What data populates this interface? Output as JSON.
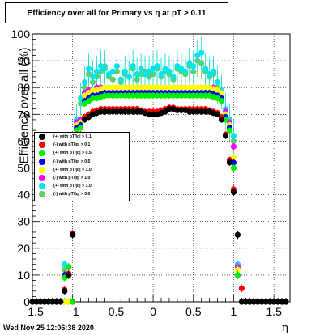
{
  "chart_data": {
    "type": "scatter",
    "title": "Efficiency over all for Primary vs   η at pT > 0.11",
    "xlabel": "η",
    "ylabel": "Efficiency over all (%)",
    "xlim": [
      -1.5,
      1.7
    ],
    "ylim": [
      0,
      100
    ],
    "xticks": [
      "−1.5",
      "−1",
      "−0.5",
      "0",
      "0.5",
      "1",
      "1.5"
    ],
    "yticks": [
      "0",
      "10",
      "20",
      "30",
      "40",
      "50",
      "60",
      "70",
      "80",
      "90",
      "100"
    ],
    "grid": true,
    "legend_position": "left-middle",
    "x": [
      -1.5,
      -1.45,
      -1.4,
      -1.35,
      -1.3,
      -1.25,
      -1.2,
      -1.15,
      -1.1,
      -1.05,
      -1.0,
      -0.95,
      -0.9,
      -0.85,
      -0.8,
      -0.75,
      -0.7,
      -0.65,
      -0.6,
      -0.55,
      -0.5,
      -0.45,
      -0.4,
      -0.35,
      -0.3,
      -0.25,
      -0.2,
      -0.15,
      -0.1,
      -0.05,
      0.0,
      0.05,
      0.1,
      0.15,
      0.2,
      0.25,
      0.3,
      0.35,
      0.4,
      0.45,
      0.5,
      0.55,
      0.6,
      0.65,
      0.7,
      0.75,
      0.8,
      0.85,
      0.9,
      0.95,
      1.0,
      1.05,
      1.1,
      1.15,
      1.2,
      1.25,
      1.3,
      1.35,
      1.4,
      1.45,
      1.5,
      1.55,
      1.6,
      1.65
    ],
    "series": [
      {
        "name": "(+) with pT/|q| > 0.1",
        "color": "#000000",
        "values": [
          0,
          0,
          0,
          0,
          0,
          0,
          0,
          0,
          4,
          10,
          25,
          52,
          62,
          68,
          69,
          70,
          70.5,
          71,
          71,
          71,
          71,
          71,
          71,
          71,
          71,
          71,
          71,
          71,
          70.5,
          70,
          70,
          70,
          70.5,
          71,
          72,
          72,
          71.5,
          71.5,
          71.5,
          71,
          71,
          71,
          71,
          71,
          71,
          70.5,
          70,
          68,
          62,
          52,
          41,
          25,
          0,
          0,
          0,
          0,
          0,
          0,
          0,
          0,
          0,
          0,
          0,
          0
        ]
      },
      {
        "name": "(-) with pT/|q| > 0.1",
        "color": "#ff0000",
        "values": [
          0,
          0,
          0,
          0,
          0,
          0,
          0,
          0,
          4.5,
          10.5,
          25.5,
          52.5,
          62.5,
          69,
          70,
          71,
          71.5,
          72,
          72,
          72,
          72,
          72,
          72,
          72,
          72,
          72,
          72,
          71.5,
          71,
          71,
          71,
          71,
          71.5,
          72,
          72.5,
          72.5,
          72,
          72,
          72,
          72,
          72,
          72,
          72,
          72,
          71.5,
          71,
          70.5,
          69,
          62.5,
          53,
          42,
          25,
          5,
          0,
          0,
          0,
          0,
          0,
          0,
          0,
          0,
          0,
          0,
          0
        ]
      },
      {
        "name": "(+) with pT/|q| > 0.5",
        "color": "#00ee00",
        "values": [
          0,
          0,
          0,
          0,
          0,
          0,
          0,
          0,
          9,
          13,
          0,
          64,
          65,
          74,
          75,
          76,
          76,
          76.5,
          77,
          77,
          77,
          77,
          77,
          77,
          77,
          77,
          77,
          77,
          77,
          77,
          77,
          77,
          77,
          77,
          77,
          77,
          77,
          77,
          77,
          77,
          77,
          77,
          77,
          77,
          77,
          76.5,
          76,
          75,
          68,
          64,
          50,
          10,
          0,
          0,
          0,
          0,
          0,
          0,
          0,
          0,
          0,
          0,
          0,
          0
        ]
      },
      {
        "name": "(-) with pT/|q| > 0.5",
        "color": "#0000ff",
        "values": [
          0,
          0,
          0,
          0,
          0,
          0,
          0,
          0,
          10,
          13,
          0,
          65,
          66,
          75,
          76,
          77,
          77,
          77.5,
          78,
          78,
          78,
          78,
          78,
          78,
          78,
          78,
          78,
          78,
          78,
          78,
          78,
          78,
          78,
          78,
          78,
          78,
          78,
          78,
          78,
          78,
          78,
          78,
          78,
          78,
          78,
          77.5,
          77,
          76,
          69,
          65,
          52,
          10,
          0,
          0,
          0,
          0,
          0,
          0,
          0,
          0,
          0,
          0,
          0,
          0
        ]
      },
      {
        "name": "(+) with pT/|q| > 1.0",
        "color": "#ffff00",
        "values": [
          0,
          0,
          0,
          0,
          0,
          0,
          0,
          0,
          0,
          0,
          0,
          66,
          67,
          77,
          78,
          79,
          79,
          79.5,
          80,
          80,
          80,
          80,
          80,
          80,
          80,
          80,
          80,
          80,
          80,
          80,
          80,
          80,
          80,
          80,
          80,
          80,
          80,
          80,
          80,
          80,
          80,
          80,
          80,
          80,
          80,
          79.5,
          79,
          78,
          70,
          66,
          54,
          12,
          0,
          0,
          0,
          0,
          0,
          0,
          0,
          0,
          0,
          0,
          0,
          0
        ]
      },
      {
        "name": "(-) with pT/|q| > 1.0",
        "color": "#ff00ff",
        "values": [
          0,
          0,
          0,
          0,
          0,
          0,
          0,
          0,
          0,
          0,
          0,
          67,
          68,
          78,
          79,
          79,
          80,
          80,
          80,
          80,
          80,
          80,
          80,
          80,
          80,
          80,
          80,
          80,
          80,
          80,
          80,
          80,
          80,
          80,
          80,
          80,
          80,
          80,
          80,
          80,
          80,
          80,
          80,
          80,
          80,
          80,
          79,
          78,
          71,
          67,
          58,
          13,
          0,
          0,
          0,
          0,
          0,
          0,
          0,
          0,
          0,
          0,
          0,
          0
        ]
      },
      {
        "name": "(+) with pT/|q| > 3.0",
        "color": "#00e5ee",
        "values": [
          0,
          0,
          0,
          0,
          0,
          0,
          0,
          0,
          14,
          0,
          0,
          68,
          76,
          82,
          87,
          84,
          86,
          88,
          87,
          85,
          86,
          88,
          83,
          86,
          84,
          88,
          85,
          87,
          85,
          86,
          87,
          88,
          85,
          87,
          86,
          84,
          88,
          87,
          86,
          89,
          88,
          92,
          93,
          87,
          85,
          86,
          82,
          79,
          72,
          68,
          62,
          14,
          0,
          0,
          0,
          0,
          0,
          0,
          0,
          0,
          0,
          0,
          0,
          0
        ]
      },
      {
        "name": "(-) with pT/|q| > 3.0",
        "color": "#66cc66",
        "values": [
          0,
          0,
          0,
          0,
          0,
          0,
          0,
          0,
          12,
          0,
          0,
          66,
          74,
          80,
          85,
          82,
          84,
          86,
          88,
          84,
          83,
          86,
          82,
          85,
          84,
          87,
          83,
          85,
          86,
          84,
          85,
          87,
          84,
          86,
          85,
          83,
          87,
          86,
          85,
          88,
          86,
          90,
          89,
          86,
          84,
          85,
          80,
          78,
          70,
          66,
          60,
          13,
          0,
          0,
          0,
          0,
          0,
          0,
          0,
          0,
          0,
          0,
          0,
          0
        ]
      }
    ]
  },
  "footer": {
    "date": "Wed Nov 25 12:06:38 2020"
  }
}
